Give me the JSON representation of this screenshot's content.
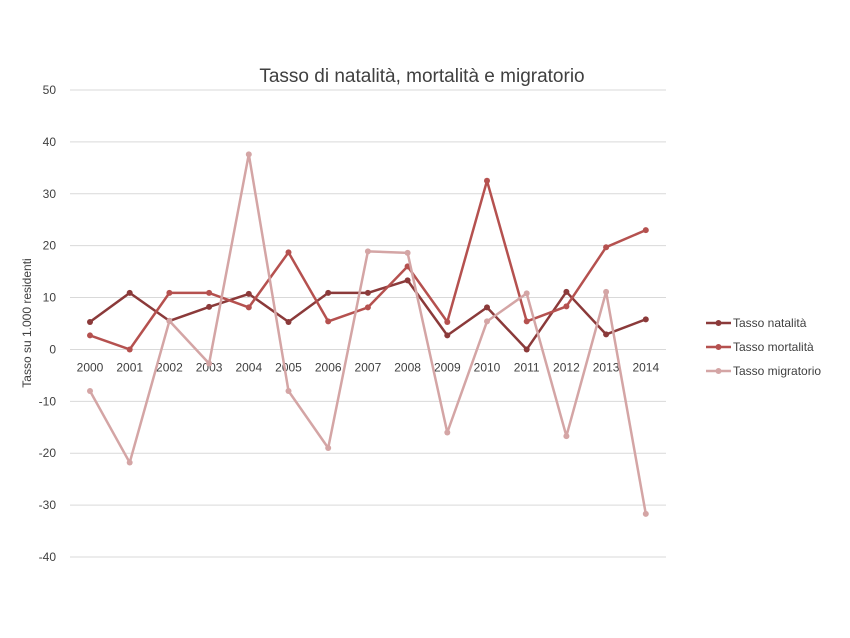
{
  "chart_data": {
    "type": "line",
    "title": "Tasso di natalità, mortalità e migratorio",
    "xlabel": "",
    "ylabel": "Tasso su 1.000 residenti",
    "ylim": [
      -40,
      50
    ],
    "yticks": [
      50,
      40,
      30,
      20,
      10,
      0,
      -10,
      -20,
      -30,
      -40
    ],
    "yticks_labels": [
      "50",
      "40",
      "30",
      "20",
      "10",
      "0",
      "-10",
      "-20",
      "-30",
      "-40"
    ],
    "grid": true,
    "legend": "right",
    "categories": [
      "2000",
      "2001",
      "2002",
      "2003",
      "2004",
      "2005",
      "2006",
      "2007",
      "2008",
      "2009",
      "2010",
      "2011",
      "2012",
      "2013",
      "2014"
    ],
    "series": [
      {
        "name": "Tasso natalità",
        "color": "#8b3a3a",
        "values": [
          5.3,
          10.9,
          5.5,
          8.2,
          10.7,
          5.3,
          10.9,
          10.9,
          13.3,
          2.7,
          8.1,
          0.0,
          11.1,
          2.9,
          5.8
        ]
      },
      {
        "name": "Tasso mortalità",
        "color": "#b5514f",
        "values": [
          2.7,
          0.0,
          10.9,
          10.9,
          8.1,
          18.7,
          5.4,
          8.1,
          16.0,
          5.3,
          32.5,
          5.4,
          8.3,
          19.7,
          23.0
        ]
      },
      {
        "name": "Tasso migratorio",
        "color": "#d4a5a5",
        "values": [
          -8.0,
          -21.8,
          5.5,
          -2.7,
          37.6,
          -8.0,
          -19.0,
          18.9,
          18.6,
          -16.0,
          5.4,
          10.8,
          -16.7,
          11.1,
          -31.7
        ]
      }
    ]
  }
}
